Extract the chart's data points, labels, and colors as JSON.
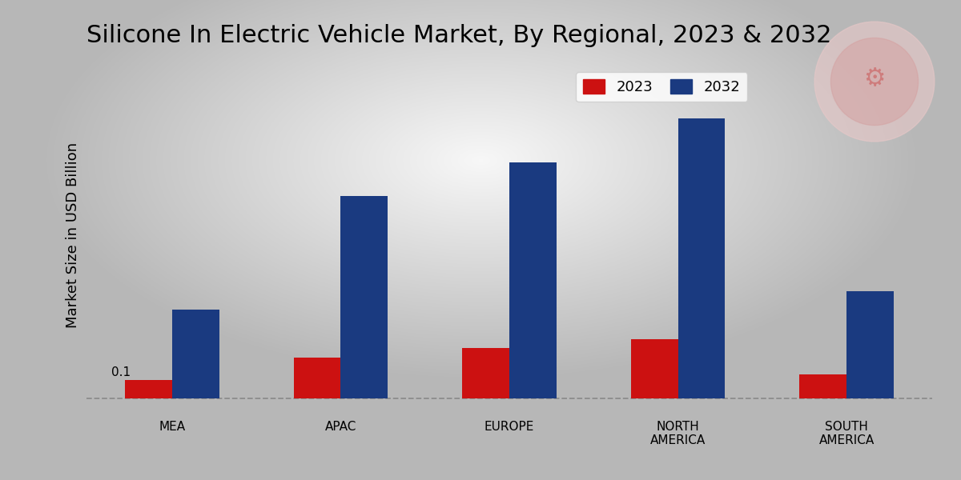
{
  "title": "Silicone In Electric Vehicle Market, By Regional, 2023 & 2032",
  "ylabel": "Market Size in USD Billion",
  "categories": [
    "MEA",
    "APAC",
    "EUROPE",
    "NORTH\nAMERICA",
    "SOUTH\nAMERICA"
  ],
  "values_2023": [
    0.1,
    0.22,
    0.27,
    0.32,
    0.13
  ],
  "values_2032": [
    0.48,
    1.1,
    1.28,
    1.52,
    0.58
  ],
  "color_2023": "#cc1111",
  "color_2032": "#1a3a80",
  "annotation_text": "0.1",
  "dashed_line_color": "#888888",
  "ylim_min": -0.08,
  "ylim_max": 1.85,
  "bar_width": 0.28,
  "legend_labels": [
    "2023",
    "2032"
  ],
  "title_fontsize": 22,
  "axis_label_fontsize": 13,
  "tick_fontsize": 11,
  "legend_fontsize": 13,
  "bottom_bar_color": "#bb0000",
  "bg_outer": "#c8c8c8",
  "bg_inner": "#f5f5f5"
}
